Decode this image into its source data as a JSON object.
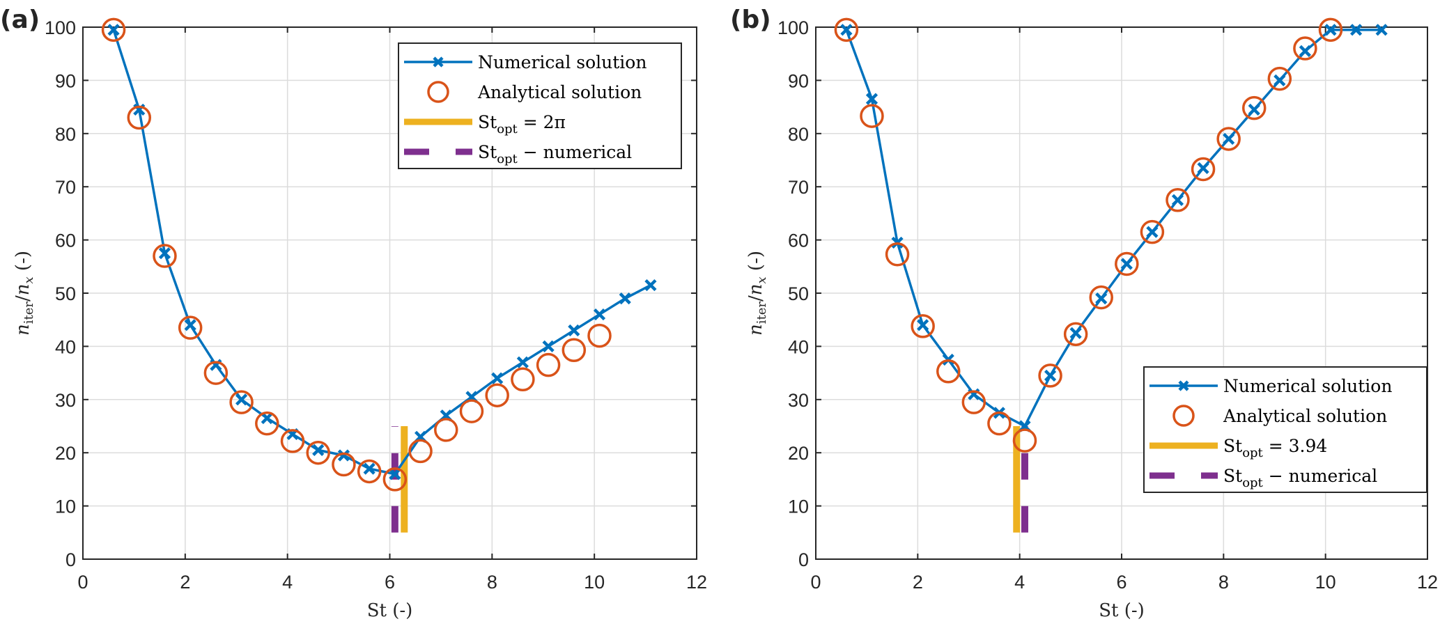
{
  "chart_data": [
    {
      "panel_label": "(a)",
      "type": "line",
      "title": "",
      "xlabel": "St (-)",
      "ylabel": {
        "main": "n",
        "sub": "iter",
        "den": "n",
        "den_sub": "x",
        "suffix": " (-)"
      },
      "xlim": [
        0,
        12
      ],
      "ylim": [
        0,
        100
      ],
      "xticks": [
        0,
        2,
        4,
        6,
        8,
        10,
        12
      ],
      "yticks": [
        0,
        10,
        20,
        30,
        40,
        50,
        60,
        70,
        80,
        90,
        100
      ],
      "grid": true,
      "legend_position": "top-right",
      "series": [
        {
          "name": "Numerical solution",
          "style": "line-x",
          "color": "#0072BD",
          "x": [
            0.6,
            1.1,
            1.6,
            2.1,
            2.6,
            3.1,
            3.6,
            4.1,
            4.6,
            5.1,
            5.6,
            6.1,
            6.6,
            7.1,
            7.6,
            8.1,
            8.6,
            9.1,
            9.6,
            10.1,
            10.6,
            11.1
          ],
          "y": [
            99.5,
            84.5,
            57.5,
            44,
            36.5,
            30,
            26.5,
            23.5,
            20.5,
            19.5,
            17,
            16,
            23,
            27,
            30.5,
            34,
            37,
            40,
            43,
            46,
            49,
            51.5
          ]
        },
        {
          "name": "Analytical solution",
          "style": "circle",
          "color": "#D95319",
          "x": [
            0.6,
            1.1,
            1.6,
            2.1,
            2.6,
            3.1,
            3.6,
            4.1,
            4.6,
            5.1,
            5.6,
            6.1,
            6.6,
            7.1,
            7.6,
            8.1,
            8.6,
            9.1,
            9.6,
            10.1
          ],
          "y": [
            99.5,
            83,
            57,
            43.5,
            35,
            29.5,
            25.5,
            22.2,
            20,
            17.8,
            16.5,
            15,
            20.3,
            24.3,
            27.8,
            30.8,
            33.8,
            36.5,
            39.3,
            42
          ]
        }
      ],
      "vlines": [
        {
          "name": "St_opt = 2π",
          "label_main": "St",
          "label_sub": "opt",
          "label_rest": " = 2π",
          "x": 6.2832,
          "y_range": [
            5,
            25
          ],
          "color": "#EDB120",
          "dashed": false
        },
        {
          "name": "St_opt - numerical",
          "label_main": "St",
          "label_sub": "opt",
          "label_rest": " − numerical",
          "x": 6.1,
          "y_range": [
            5,
            25
          ],
          "color": "#7E2F8E",
          "dashed": true
        }
      ]
    },
    {
      "panel_label": "(b)",
      "type": "line",
      "title": "",
      "xlabel": "St (-)",
      "ylabel": {
        "main": "n",
        "sub": "iter",
        "den": "n",
        "den_sub": "x",
        "suffix": " (-)"
      },
      "xlim": [
        0,
        12
      ],
      "ylim": [
        0,
        100
      ],
      "xticks": [
        0,
        2,
        4,
        6,
        8,
        10,
        12
      ],
      "yticks": [
        0,
        10,
        20,
        30,
        40,
        50,
        60,
        70,
        80,
        90,
        100
      ],
      "grid": true,
      "legend_position": "bottom-right",
      "series": [
        {
          "name": "Numerical solution",
          "style": "line-x",
          "color": "#0072BD",
          "x": [
            0.6,
            1.1,
            1.6,
            2.1,
            2.6,
            3.1,
            3.6,
            4.1,
            4.6,
            5.1,
            5.6,
            6.1,
            6.6,
            7.1,
            7.6,
            8.1,
            8.6,
            9.1,
            9.6,
            10.1,
            10.6,
            11.1
          ],
          "y": [
            99.5,
            86.5,
            59.5,
            44,
            37.5,
            31,
            27.5,
            25,
            34.5,
            42.5,
            49,
            55.5,
            61.5,
            67.5,
            73.5,
            79,
            84.5,
            90,
            95.5,
            99.5,
            99.5,
            99.5
          ]
        },
        {
          "name": "Analytical solution",
          "style": "circle",
          "color": "#D95319",
          "x": [
            0.6,
            1.1,
            1.6,
            2.1,
            2.6,
            3.1,
            3.6,
            4.1,
            4.6,
            5.1,
            5.6,
            6.1,
            6.6,
            7.1,
            7.6,
            8.1,
            8.6,
            9.1,
            9.6,
            10.1
          ],
          "y": [
            99.5,
            83.3,
            57.3,
            43.8,
            35.3,
            29.5,
            25.5,
            22.3,
            34.5,
            42.3,
            49.2,
            55.5,
            61.5,
            67.5,
            73.3,
            79,
            84.8,
            90.3,
            96,
            99.5
          ]
        }
      ],
      "vlines": [
        {
          "name": "St_opt = 3.94",
          "label_main": "St",
          "label_sub": "opt",
          "label_rest": " = 3.94",
          "x": 3.94,
          "y_range": [
            5,
            25
          ],
          "color": "#EDB120",
          "dashed": false
        },
        {
          "name": "St_opt - numerical",
          "label_main": "St",
          "label_sub": "opt",
          "label_rest": " − numerical",
          "x": 4.1,
          "y_range": [
            5,
            25
          ],
          "color": "#7E2F8E",
          "dashed": true
        }
      ]
    }
  ]
}
